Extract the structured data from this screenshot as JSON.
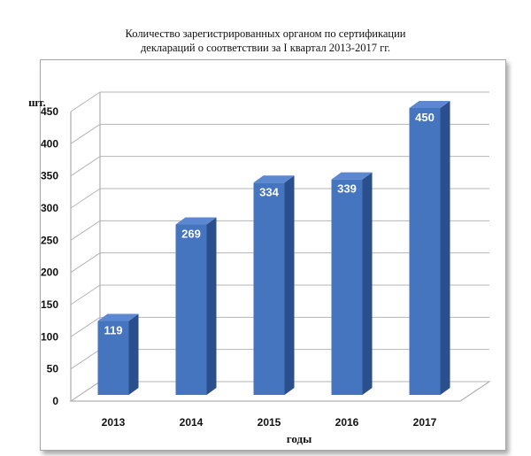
{
  "chart_data": {
    "type": "bar",
    "title_lines": [
      "Количество зарегистрированных органом по сертификации",
      "деклараций о соответствии за I квартал 2013-2017 гг."
    ],
    "categories": [
      "2013",
      "2014",
      "2015",
      "2016",
      "2017"
    ],
    "values": [
      119,
      269,
      334,
      339,
      450
    ],
    "ylabel": "шт.",
    "xlabel": "годы",
    "ylim": [
      0,
      450
    ],
    "yticks": [
      0,
      50,
      100,
      150,
      200,
      250,
      300,
      350,
      400,
      450
    ],
    "grid": true,
    "style": "3d",
    "colors": {
      "bar_front": "#4575bf",
      "bar_side": "#2b4f8c",
      "bar_top": "#5b88d0",
      "label": "#ffffff",
      "grid": "#b5b5b5"
    }
  }
}
